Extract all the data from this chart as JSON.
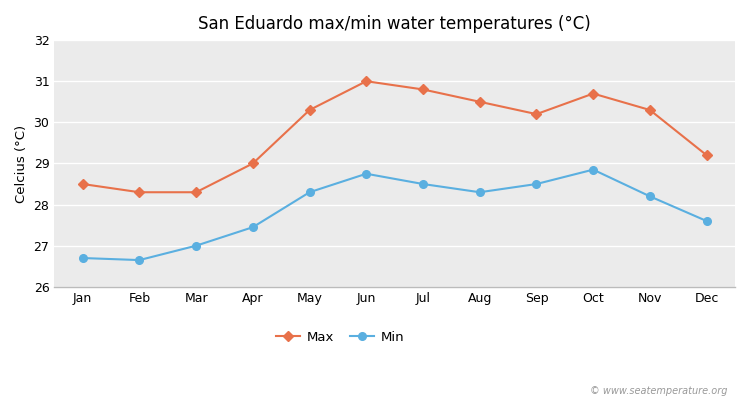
{
  "title": "San Eduardo max/min water temperatures (°C)",
  "ylabel": "Celcius (°C)",
  "months": [
    "Jan",
    "Feb",
    "Mar",
    "Apr",
    "May",
    "Jun",
    "Jul",
    "Aug",
    "Sep",
    "Oct",
    "Nov",
    "Dec"
  ],
  "max_temps": [
    28.5,
    28.3,
    28.3,
    29.0,
    30.3,
    31.0,
    30.8,
    30.5,
    30.2,
    30.7,
    30.3,
    29.2
  ],
  "min_temps": [
    26.7,
    26.65,
    27.0,
    27.45,
    28.3,
    28.75,
    28.5,
    28.3,
    28.5,
    28.85,
    28.2,
    27.6
  ],
  "max_color": "#e8714a",
  "min_color": "#5aafe0",
  "outer_bg": "#ffffff",
  "plot_bg_color": "#ebebeb",
  "ylim": [
    26,
    32
  ],
  "yticks": [
    26,
    27,
    28,
    29,
    30,
    31,
    32
  ],
  "watermark": "© www.seatemperature.org",
  "legend_labels": [
    "Max",
    "Min"
  ],
  "grid_color": "#ffffff",
  "bottom_spine_color": "#bbbbbb"
}
